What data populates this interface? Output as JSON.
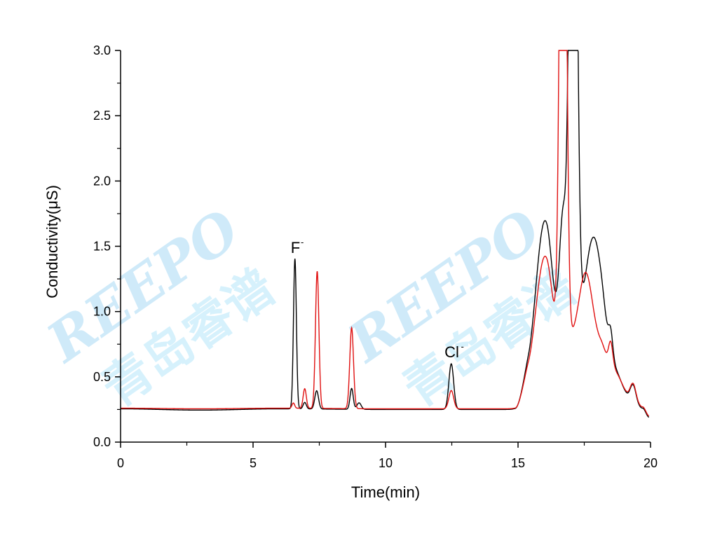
{
  "watermark": {
    "text": "REEPO",
    "cjk": "青岛睿谱",
    "color_text": "#bfe3f7",
    "color_cjk": "#c8ecfb"
  },
  "chart_data": {
    "type": "line",
    "xlabel": "Time(min)",
    "ylabel": "Conductivity(μS)",
    "xlim": [
      0,
      20
    ],
    "ylim": [
      0,
      3.0
    ],
    "x_ticks": [
      0,
      5,
      10,
      15,
      20
    ],
    "x_tick_labels": [
      "0",
      "5",
      "10",
      "15",
      "20"
    ],
    "y_ticks": [
      0.0,
      0.5,
      1.0,
      1.5,
      2.0,
      2.5,
      3.0
    ],
    "y_tick_labels": [
      "0.0",
      "0.5",
      "1.0",
      "1.5",
      "2.0",
      "2.5",
      "3.0"
    ],
    "grid": false,
    "annotations": [
      {
        "text": "F",
        "sup": "-",
        "x": 6.6,
        "y": 1.45
      },
      {
        "text": "Cl",
        "sup": "-",
        "x": 12.5,
        "y": 0.65
      }
    ],
    "series": [
      {
        "color": "#000000",
        "peaks": [
          [
            6.58,
            1.15,
            0.055
          ],
          [
            6.95,
            0.05,
            0.06
          ],
          [
            7.4,
            0.14,
            0.07
          ],
          [
            8.72,
            0.16,
            0.06
          ],
          [
            9.0,
            0.05,
            0.08
          ],
          [
            12.48,
            0.35,
            0.09
          ],
          [
            15.95,
            0.78,
            0.35
          ],
          [
            16.7,
            0.8,
            0.12
          ],
          [
            17.08,
            6.0,
            0.13
          ],
          [
            17.85,
            0.82,
            0.32
          ],
          [
            18.5,
            0.2,
            0.08
          ],
          [
            19.35,
            0.1,
            0.1
          ]
        ],
        "baseline": [
          [
            0,
            0.255
          ],
          [
            3,
            0.245
          ],
          [
            6,
            0.255
          ],
          [
            10,
            0.25
          ],
          [
            14.9,
            0.25
          ],
          [
            15.4,
            0.45
          ],
          [
            16.1,
            0.95
          ],
          [
            16.4,
            0.78
          ],
          [
            16.6,
            0.85
          ],
          [
            17.5,
            0.75
          ],
          [
            18.1,
            0.75
          ],
          [
            18.6,
            0.55
          ],
          [
            19.2,
            0.36
          ],
          [
            19.7,
            0.26
          ],
          [
            19.95,
            0.19
          ]
        ]
      },
      {
        "color": "#e01010",
        "peaks": [
          [
            6.52,
            0.04,
            0.05
          ],
          [
            6.95,
            0.15,
            0.06
          ],
          [
            7.42,
            1.05,
            0.065
          ],
          [
            8.72,
            0.62,
            0.07
          ],
          [
            12.48,
            0.14,
            0.09
          ],
          [
            15.95,
            0.6,
            0.35
          ],
          [
            16.7,
            6.0,
            0.11
          ],
          [
            17.55,
            0.55,
            0.25
          ],
          [
            18.5,
            0.2,
            0.08
          ],
          [
            19.35,
            0.1,
            0.1
          ]
        ],
        "baseline": [
          [
            0,
            0.26
          ],
          [
            3,
            0.255
          ],
          [
            6,
            0.26
          ],
          [
            10,
            0.255
          ],
          [
            14.9,
            0.255
          ],
          [
            15.4,
            0.45
          ],
          [
            16.1,
            0.85
          ],
          [
            16.4,
            0.72
          ],
          [
            16.6,
            0.8
          ],
          [
            17.5,
            0.75
          ],
          [
            18.1,
            0.75
          ],
          [
            18.6,
            0.55
          ],
          [
            19.2,
            0.37
          ],
          [
            19.7,
            0.27
          ],
          [
            19.95,
            0.2
          ]
        ]
      }
    ]
  }
}
